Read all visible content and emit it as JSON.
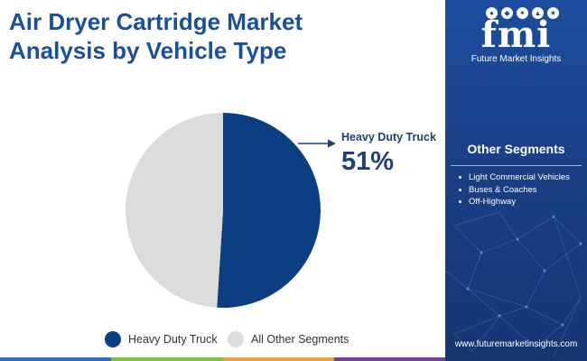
{
  "title": {
    "line1": "Air Dryer Cartridge Market",
    "line2": "Analysis by Vehicle Type"
  },
  "chart_data": {
    "type": "pie",
    "slices": [
      {
        "label": "Heavy Duty Truck",
        "value": 51,
        "color": "#0c3f82"
      },
      {
        "label": "All Other Segments",
        "value": 49,
        "color": "#dcdcdc"
      }
    ],
    "callout": {
      "label": "Heavy Duty Truck",
      "value": "51%"
    },
    "legend_placement": "bottom"
  },
  "legend": [
    {
      "label": "Heavy Duty Truck",
      "color": "#0c3f82"
    },
    {
      "label": "All Other Segments",
      "color": "#dcdcdc"
    }
  ],
  "sidebar": {
    "logo_text": "fmi",
    "brand_name": "Future Market Insights",
    "segments_title": "Other Segments",
    "segments": [
      "Light Commercial Vehicles",
      "Buses & Coaches",
      "Off-Highway"
    ],
    "website": "www.futuremarketinsights.com"
  },
  "colors": {
    "title": "#1a4f9c",
    "sidebar_bg": "#1a3f86",
    "bottom_bar": [
      "#2c6fbf",
      "#7cc242",
      "#e8a33a",
      "#7c3f98"
    ]
  }
}
